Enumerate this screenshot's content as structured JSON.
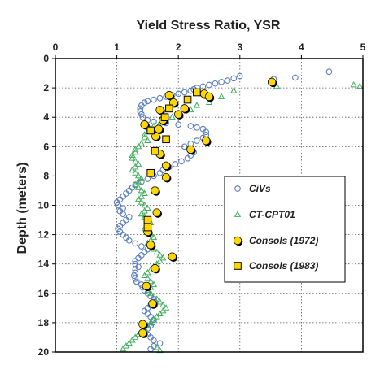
{
  "chart_data": {
    "type": "scatter",
    "title": "Yield Stress Ratio, YSR",
    "xlabel": "Yield Stress Ratio, YSR",
    "ylabel": "Depth (meters)",
    "xlim": [
      0,
      5
    ],
    "ylim": [
      0,
      20
    ],
    "x_axis_position": "top",
    "y_inverted": true,
    "grid": "dotted",
    "xticks": [
      "0",
      "1",
      "2",
      "3",
      "4",
      "5"
    ],
    "yticks": [
      "0",
      "2",
      "4",
      "6",
      "8",
      "10",
      "12",
      "14",
      "16",
      "18",
      "20"
    ],
    "legend_position": "right",
    "series": [
      {
        "name": "CiVs",
        "marker": "open-circle",
        "color": "#5b7fbf",
        "points": [
          [
            4.45,
            0.9
          ],
          [
            3.9,
            1.3
          ],
          [
            3.55,
            1.4
          ],
          [
            3.0,
            1.2
          ],
          [
            2.9,
            1.35
          ],
          [
            2.8,
            1.5
          ],
          [
            2.7,
            1.6
          ],
          [
            2.6,
            1.7
          ],
          [
            2.5,
            1.8
          ],
          [
            2.4,
            1.9
          ],
          [
            2.3,
            2.0
          ],
          [
            2.25,
            2.1
          ],
          [
            2.2,
            2.2
          ],
          [
            2.1,
            2.3
          ],
          [
            2.0,
            2.4
          ],
          [
            1.9,
            2.5
          ],
          [
            1.8,
            2.6
          ],
          [
            1.7,
            2.7
          ],
          [
            1.6,
            2.8
          ],
          [
            1.5,
            2.9
          ],
          [
            1.45,
            3.0
          ],
          [
            1.4,
            3.2
          ],
          [
            1.38,
            3.4
          ],
          [
            1.38,
            3.6
          ],
          [
            1.4,
            3.8
          ],
          [
            1.42,
            4.0
          ],
          [
            1.5,
            4.2
          ],
          [
            1.6,
            4.3
          ],
          [
            1.8,
            4.4
          ],
          [
            2.0,
            4.5
          ],
          [
            2.2,
            4.6
          ],
          [
            2.3,
            4.7
          ],
          [
            2.4,
            4.8
          ],
          [
            2.45,
            5.0
          ],
          [
            2.45,
            5.2
          ],
          [
            2.4,
            5.4
          ],
          [
            2.3,
            5.6
          ],
          [
            2.2,
            5.8
          ],
          [
            2.1,
            6.0
          ],
          [
            2.2,
            6.2
          ],
          [
            2.25,
            6.4
          ],
          [
            2.2,
            6.6
          ],
          [
            2.15,
            6.8
          ],
          [
            2.05,
            7.0
          ],
          [
            1.95,
            7.2
          ],
          [
            1.85,
            7.4
          ],
          [
            1.75,
            7.6
          ],
          [
            1.7,
            7.8
          ],
          [
            1.6,
            8.0
          ],
          [
            1.5,
            8.2
          ],
          [
            1.4,
            8.4
          ],
          [
            1.3,
            8.6
          ],
          [
            1.25,
            8.8
          ],
          [
            1.2,
            9.0
          ],
          [
            1.15,
            9.2
          ],
          [
            1.1,
            9.4
          ],
          [
            1.05,
            9.6
          ],
          [
            1.0,
            9.8
          ],
          [
            1.02,
            10.0
          ],
          [
            1.1,
            10.2
          ],
          [
            1.05,
            10.4
          ],
          [
            1.1,
            10.6
          ],
          [
            1.2,
            10.8
          ],
          [
            1.15,
            11.0
          ],
          [
            1.1,
            11.2
          ],
          [
            1.05,
            11.4
          ],
          [
            1.02,
            11.6
          ],
          [
            1.05,
            11.8
          ],
          [
            1.1,
            12.0
          ],
          [
            1.15,
            12.2
          ],
          [
            1.2,
            12.4
          ],
          [
            1.3,
            12.6
          ],
          [
            1.4,
            12.8
          ],
          [
            1.5,
            13.0
          ],
          [
            1.45,
            13.2
          ],
          [
            1.4,
            13.4
          ],
          [
            1.35,
            13.6
          ],
          [
            1.3,
            13.8
          ],
          [
            1.3,
            14.0
          ],
          [
            1.35,
            14.2
          ],
          [
            1.3,
            14.4
          ],
          [
            1.3,
            14.6
          ],
          [
            1.28,
            14.8
          ],
          [
            1.3,
            15.0
          ],
          [
            1.32,
            15.2
          ],
          [
            1.4,
            15.4
          ],
          [
            1.42,
            15.6
          ],
          [
            1.45,
            15.8
          ],
          [
            1.5,
            16.0
          ],
          [
            1.55,
            16.2
          ],
          [
            1.6,
            16.4
          ],
          [
            1.62,
            16.6
          ],
          [
            1.55,
            16.8
          ],
          [
            1.5,
            17.0
          ],
          [
            1.45,
            17.2
          ],
          [
            1.5,
            17.4
          ],
          [
            1.55,
            17.6
          ],
          [
            1.6,
            17.8
          ],
          [
            1.58,
            18.0
          ],
          [
            1.55,
            18.2
          ],
          [
            1.5,
            18.4
          ],
          [
            1.45,
            18.6
          ],
          [
            1.5,
            18.8
          ],
          [
            1.55,
            19.0
          ],
          [
            1.6,
            19.2
          ],
          [
            1.7,
            19.4
          ],
          [
            1.6,
            19.6
          ],
          [
            1.55,
            19.8
          ]
        ]
      },
      {
        "name": "CT-CPT01",
        "marker": "open-triangle",
        "color": "#3fae5a",
        "points": [
          [
            4.95,
            1.9
          ],
          [
            4.85,
            1.8
          ],
          [
            3.6,
            1.9
          ],
          [
            2.9,
            2.2
          ],
          [
            2.7,
            2.6
          ],
          [
            2.5,
            3.0
          ],
          [
            2.3,
            3.2
          ],
          [
            2.2,
            3.5
          ],
          [
            2.0,
            3.8
          ],
          [
            1.9,
            4.0
          ],
          [
            1.8,
            4.2
          ],
          [
            1.7,
            4.4
          ],
          [
            1.6,
            4.6
          ],
          [
            1.55,
            4.8
          ],
          [
            1.5,
            5.0
          ],
          [
            1.45,
            5.2
          ],
          [
            1.45,
            5.4
          ],
          [
            1.5,
            5.6
          ],
          [
            1.4,
            5.8
          ],
          [
            1.35,
            6.0
          ],
          [
            1.3,
            6.2
          ],
          [
            1.3,
            6.4
          ],
          [
            1.25,
            6.6
          ],
          [
            1.25,
            6.8
          ],
          [
            1.3,
            7.0
          ],
          [
            1.35,
            7.2
          ],
          [
            1.3,
            7.4
          ],
          [
            1.25,
            7.6
          ],
          [
            1.3,
            7.8
          ],
          [
            1.35,
            8.0
          ],
          [
            1.4,
            8.2
          ],
          [
            1.35,
            8.4
          ],
          [
            1.3,
            8.6
          ],
          [
            1.35,
            8.8
          ],
          [
            1.4,
            9.0
          ],
          [
            1.45,
            9.2
          ],
          [
            1.4,
            9.4
          ],
          [
            1.35,
            9.6
          ],
          [
            1.4,
            9.8
          ],
          [
            1.45,
            10.0
          ],
          [
            1.5,
            10.2
          ],
          [
            1.45,
            10.4
          ],
          [
            1.4,
            10.6
          ],
          [
            1.45,
            10.8
          ],
          [
            1.5,
            11.0
          ],
          [
            1.55,
            11.2
          ],
          [
            1.5,
            11.4
          ],
          [
            1.45,
            11.6
          ],
          [
            1.5,
            11.8
          ],
          [
            1.55,
            12.0
          ],
          [
            1.6,
            12.2
          ],
          [
            1.55,
            12.4
          ],
          [
            1.5,
            12.6
          ],
          [
            1.55,
            12.8
          ],
          [
            1.6,
            13.0
          ],
          [
            1.65,
            13.2
          ],
          [
            1.7,
            13.4
          ],
          [
            1.75,
            13.6
          ],
          [
            1.7,
            13.8
          ],
          [
            1.65,
            14.0
          ],
          [
            1.6,
            14.2
          ],
          [
            1.55,
            14.4
          ],
          [
            1.5,
            14.6
          ],
          [
            1.45,
            14.8
          ],
          [
            1.5,
            15.0
          ],
          [
            1.55,
            15.2
          ],
          [
            1.6,
            15.4
          ],
          [
            1.55,
            15.6
          ],
          [
            1.5,
            15.8
          ],
          [
            1.55,
            16.0
          ],
          [
            1.6,
            16.2
          ],
          [
            1.65,
            16.4
          ],
          [
            1.7,
            16.6
          ],
          [
            1.75,
            16.8
          ],
          [
            1.8,
            17.0
          ],
          [
            1.75,
            17.2
          ],
          [
            1.7,
            17.4
          ],
          [
            1.65,
            17.6
          ],
          [
            1.6,
            17.8
          ],
          [
            1.55,
            18.0
          ],
          [
            1.5,
            18.2
          ],
          [
            1.45,
            18.4
          ],
          [
            1.4,
            18.6
          ],
          [
            1.35,
            18.8
          ],
          [
            1.3,
            19.0
          ],
          [
            1.25,
            19.2
          ],
          [
            1.2,
            19.4
          ],
          [
            1.15,
            19.6
          ],
          [
            1.1,
            19.8
          ],
          [
            1.65,
            19.7
          ],
          [
            1.7,
            19.9
          ]
        ]
      },
      {
        "name": "Consols (1972)",
        "marker": "filled-circle",
        "color": "#ffd700",
        "points": [
          [
            3.52,
            1.6
          ],
          [
            1.85,
            2.5
          ],
          [
            2.42,
            2.4
          ],
          [
            2.5,
            2.6
          ],
          [
            1.92,
            3.0
          ],
          [
            1.7,
            3.5
          ],
          [
            2.1,
            3.4
          ],
          [
            2.0,
            3.8
          ],
          [
            1.75,
            4.2
          ],
          [
            1.45,
            4.5
          ],
          [
            1.68,
            4.8
          ],
          [
            1.63,
            5.3
          ],
          [
            2.45,
            5.6
          ],
          [
            2.2,
            6.2
          ],
          [
            1.7,
            6.5
          ],
          [
            1.8,
            7.3
          ],
          [
            1.8,
            8.1
          ],
          [
            1.62,
            9.0
          ],
          [
            1.65,
            10.5
          ],
          [
            1.5,
            11.8
          ],
          [
            1.55,
            12.7
          ],
          [
            1.9,
            13.5
          ],
          [
            1.62,
            14.3
          ],
          [
            1.48,
            15.5
          ],
          [
            1.58,
            16.7
          ],
          [
            1.42,
            18.1
          ],
          [
            1.42,
            18.7
          ]
        ]
      },
      {
        "name": "Consols (1983)",
        "marker": "filled-square",
        "color": "#ffd700",
        "points": [
          [
            2.3,
            2.3
          ],
          [
            2.15,
            2.8
          ],
          [
            1.85,
            3.4
          ],
          [
            1.78,
            4.0
          ],
          [
            1.55,
            4.9
          ],
          [
            1.8,
            5.5
          ],
          [
            1.62,
            6.3
          ],
          [
            1.55,
            7.8
          ],
          [
            1.5,
            11.0
          ],
          [
            1.5,
            11.5
          ]
        ]
      }
    ]
  }
}
